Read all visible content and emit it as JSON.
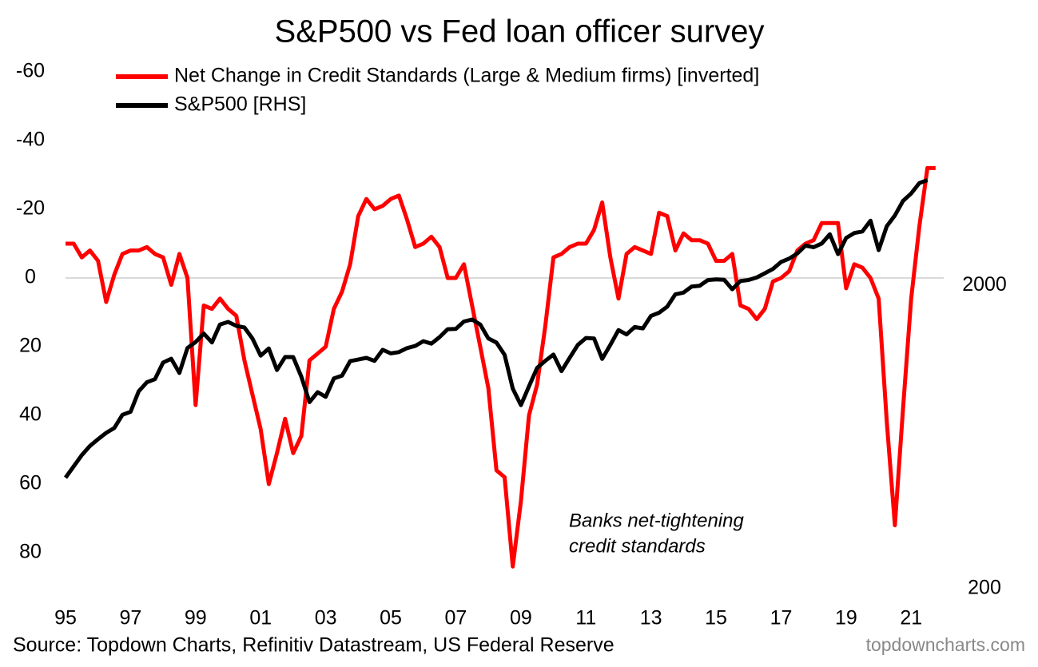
{
  "chart_data": {
    "type": "line",
    "title": "S&P500 vs Fed loan officer survey",
    "annotation": [
      "Banks net-tightening",
      "credit standards"
    ],
    "source": "Source: Topdown Charts, Refinitiv Datastream, US Federal Reserve",
    "watermark": "topdowncharts.com",
    "xlim": [
      1995,
      2022
    ],
    "xticks": [
      {
        "value": 1995,
        "label": "95"
      },
      {
        "value": 1997,
        "label": "97"
      },
      {
        "value": 1999,
        "label": "99"
      },
      {
        "value": 2001,
        "label": "01"
      },
      {
        "value": 2003,
        "label": "03"
      },
      {
        "value": 2005,
        "label": "05"
      },
      {
        "value": 2007,
        "label": "07"
      },
      {
        "value": 2009,
        "label": "09"
      },
      {
        "value": 2011,
        "label": "11"
      },
      {
        "value": 2013,
        "label": "13"
      },
      {
        "value": 2015,
        "label": "15"
      },
      {
        "value": 2017,
        "label": "17"
      },
      {
        "value": 2019,
        "label": "19"
      },
      {
        "value": 2021,
        "label": "21"
      }
    ],
    "ylim": [
      -60,
      90
    ],
    "y_inverted": true,
    "yticks": [
      -60,
      -40,
      -20,
      0,
      20,
      40,
      60,
      80
    ],
    "y2lim": [
      200,
      10000
    ],
    "y2_log": true,
    "y2ticks": [
      200,
      2000
    ],
    "zero_line": true,
    "series": [
      {
        "name": "Net Change in Credit Standards (Large & Medium firms) [inverted]",
        "color": "#ff0000",
        "x": [
          1995,
          1995.25,
          1995.5,
          1995.75,
          1996,
          1996.25,
          1996.5,
          1996.75,
          1997,
          1997.25,
          1997.5,
          1997.75,
          1998,
          1998.25,
          1998.5,
          1998.75,
          1999,
          1999.25,
          1999.5,
          1999.75,
          2000,
          2000.25,
          2000.5,
          2000.75,
          2001,
          2001.25,
          2001.5,
          2001.75,
          2002,
          2002.25,
          2002.5,
          2002.75,
          2003,
          2003.25,
          2003.5,
          2003.75,
          2004,
          2004.25,
          2004.5,
          2004.75,
          2005,
          2005.25,
          2005.5,
          2005.75,
          2006,
          2006.25,
          2006.5,
          2006.75,
          2007,
          2007.25,
          2007.5,
          2007.75,
          2008,
          2008.25,
          2008.5,
          2008.75,
          2009,
          2009.25,
          2009.5,
          2009.75,
          2010,
          2010.25,
          2010.5,
          2010.75,
          2011,
          2011.25,
          2011.5,
          2011.75,
          2012,
          2012.25,
          2012.5,
          2012.75,
          2013,
          2013.25,
          2013.5,
          2013.75,
          2014,
          2014.25,
          2014.5,
          2014.75,
          2015,
          2015.25,
          2015.5,
          2015.75,
          2016,
          2016.25,
          2016.5,
          2016.75,
          2017,
          2017.25,
          2017.5,
          2017.75,
          2018,
          2018.25,
          2018.5,
          2018.75,
          2019,
          2019.25,
          2019.5,
          2019.75,
          2020,
          2020.25,
          2020.5,
          2020.75,
          2021,
          2021.25,
          2021.5,
          2021.75
        ],
        "values": [
          -10,
          -10,
          -6,
          -8,
          -5,
          7,
          -1,
          -7,
          -8,
          -8,
          -9,
          -7,
          -6,
          2,
          -7,
          0,
          37,
          8,
          9,
          6,
          9,
          11,
          24,
          34,
          44,
          60,
          51,
          41,
          51,
          46,
          24,
          22,
          20,
          9,
          4,
          -4,
          -18,
          -23,
          -20,
          -21,
          -23,
          -24,
          -17,
          -9,
          -10,
          -12,
          -9,
          0,
          0,
          -4,
          8,
          20,
          32,
          56,
          58,
          84,
          65,
          40,
          31,
          14,
          -6,
          -7,
          -9,
          -10,
          -10,
          -14,
          -22,
          -6,
          6,
          -7,
          -9,
          -8,
          -7,
          -19,
          -18,
          -8,
          -13,
          -11,
          -11,
          -10,
          -5,
          -5,
          -7,
          8,
          9,
          12,
          9,
          1,
          0,
          -2,
          -8,
          -10,
          -11,
          -16,
          -16,
          -16,
          3,
          -4,
          -3,
          0,
          6,
          42,
          72,
          38,
          6,
          -15,
          -32,
          -32
        ]
      },
      {
        "name": "S&P500 [RHS]",
        "color": "#000000",
        "axis": "y2",
        "x": [
          1995,
          1995.25,
          1995.5,
          1995.75,
          1996,
          1996.25,
          1996.5,
          1996.75,
          1997,
          1997.25,
          1997.5,
          1997.75,
          1998,
          1998.25,
          1998.5,
          1998.75,
          1999,
          1999.25,
          1999.5,
          1999.75,
          2000,
          2000.25,
          2000.5,
          2000.75,
          2001,
          2001.25,
          2001.5,
          2001.75,
          2002,
          2002.25,
          2002.5,
          2002.75,
          2003,
          2003.25,
          2003.5,
          2003.75,
          2004,
          2004.25,
          2004.5,
          2004.75,
          2005,
          2005.25,
          2005.5,
          2005.75,
          2006,
          2006.25,
          2006.5,
          2006.75,
          2007,
          2007.25,
          2007.5,
          2007.75,
          2008,
          2008.25,
          2008.5,
          2008.75,
          2009,
          2009.25,
          2009.5,
          2009.75,
          2010,
          2010.25,
          2010.5,
          2010.75,
          2011,
          2011.25,
          2011.5,
          2011.75,
          2012,
          2012.25,
          2012.5,
          2012.75,
          2013,
          2013.25,
          2013.5,
          2013.75,
          2014,
          2014.25,
          2014.5,
          2014.75,
          2015,
          2015.25,
          2015.5,
          2015.75,
          2016,
          2016.25,
          2016.5,
          2016.75,
          2017,
          2017.25,
          2017.5,
          2017.75,
          2018,
          2018.25,
          2018.5,
          2018.75,
          2019,
          2019.25,
          2019.5,
          2019.75,
          2020,
          2020.25,
          2020.5,
          2020.75,
          2021,
          2021.25,
          2021.5
        ],
        "values": [
          459,
          500,
          545,
          584,
          615,
          645,
          670,
          740,
          757,
          885,
          947,
          970,
          1100,
          1133,
          1017,
          1229,
          1286,
          1372,
          1282,
          1469,
          1498,
          1454,
          1436,
          1320,
          1160,
          1224,
          1040,
          1148,
          1147,
          989,
          815,
          879,
          848,
          975,
          996,
          1112,
          1126,
          1140,
          1114,
          1212,
          1180,
          1191,
          1228,
          1248,
          1294,
          1270,
          1335,
          1418,
          1420,
          1503,
          1526,
          1468,
          1322,
          1280,
          1166,
          903,
          797,
          919,
          1057,
          1115,
          1169,
          1031,
          1141,
          1258,
          1326,
          1321,
          1131,
          1258,
          1408,
          1362,
          1441,
          1426,
          1569,
          1606,
          1682,
          1848,
          1872,
          1960,
          1972,
          2059,
          2068,
          2063,
          1920,
          2044,
          2060,
          2099,
          2168,
          2239,
          2363,
          2423,
          2519,
          2674,
          2641,
          2718,
          2914,
          2507,
          2834,
          2942,
          2977,
          3231,
          2585,
          3100,
          3363,
          3756,
          3973,
          4298,
          4395
        ]
      }
    ]
  }
}
